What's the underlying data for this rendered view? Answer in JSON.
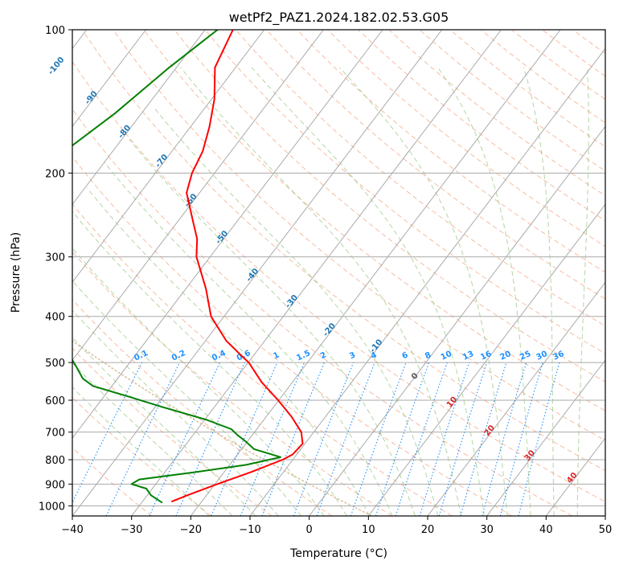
{
  "chart_data": {
    "type": "line",
    "subtype": "skew-T log-P diagram",
    "title": "wetPf2_PAZ1.2024.182.02.53.G05",
    "xlabel": "Temperature (°C)",
    "ylabel": "Pressure (hPa)",
    "xlim": [
      -40,
      50
    ],
    "ylim": [
      1050,
      100
    ],
    "y_scale": "log",
    "x_ticks": [
      -40,
      -30,
      -20,
      -10,
      0,
      10,
      20,
      30,
      40,
      50
    ],
    "y_ticks": [
      100,
      200,
      300,
      400,
      500,
      600,
      700,
      800,
      900,
      1000
    ],
    "grid": true,
    "legend": "none",
    "series": [
      {
        "key": "temperature",
        "color": "#ff0000",
        "points": [
          [
            100,
            -75.3
          ],
          [
            120,
            -73.5
          ],
          [
            140,
            -69.5
          ],
          [
            160,
            -66.8
          ],
          [
            180,
            -64.8
          ],
          [
            200,
            -63.8
          ],
          [
            220,
            -62.2
          ],
          [
            250,
            -57.8
          ],
          [
            275,
            -54.5
          ],
          [
            300,
            -52.3
          ],
          [
            350,
            -46.6
          ],
          [
            400,
            -42.2
          ],
          [
            450,
            -36.5
          ],
          [
            480,
            -32.5
          ],
          [
            500,
            -29.9
          ],
          [
            550,
            -25.2
          ],
          [
            600,
            -20.1
          ],
          [
            650,
            -15.7
          ],
          [
            700,
            -12.1
          ],
          [
            740,
            -10.4
          ],
          [
            780,
            -10.7
          ],
          [
            800,
            -11.7
          ],
          [
            850,
            -15.5
          ],
          [
            900,
            -19.6
          ],
          [
            950,
            -23.2
          ],
          [
            980,
            -25.1
          ]
        ]
      },
      {
        "key": "dewpoint",
        "color": "#008000",
        "points": [
          [
            100,
            -77.9
          ],
          [
            120,
            -81.2
          ],
          [
            150,
            -84.5
          ],
          [
            180,
            -88.1
          ],
          [
            200,
            -90.6
          ],
          [
            230,
            -91.3
          ],
          [
            265,
            -87.5
          ],
          [
            275,
            -86.1
          ],
          [
            290,
            -83.1
          ],
          [
            310,
            -80.4
          ],
          [
            340,
            -78.0
          ],
          [
            380,
            -76.8
          ],
          [
            400,
            -76.0
          ],
          [
            430,
            -71.5
          ],
          [
            460,
            -64.0
          ],
          [
            480,
            -61.4
          ],
          [
            510,
            -58.5
          ],
          [
            540,
            -55.9
          ],
          [
            560,
            -53.2
          ],
          [
            590,
            -45.7
          ],
          [
            620,
            -38.8
          ],
          [
            660,
            -29.6
          ],
          [
            690,
            -24.3
          ],
          [
            710,
            -22.5
          ],
          [
            730,
            -20.5
          ],
          [
            760,
            -17.9
          ],
          [
            790,
            -12.4
          ],
          [
            820,
            -17.2
          ],
          [
            850,
            -25.0
          ],
          [
            880,
            -33.4
          ],
          [
            900,
            -34.1
          ],
          [
            920,
            -31.0
          ],
          [
            950,
            -29.4
          ],
          [
            985,
            -26.5
          ]
        ]
      }
    ],
    "isotherm_color": "#aaaaaa",
    "dry_adiabat_color": "#f4a582",
    "moist_adiabat_color": "#93c47d",
    "mixing_ratio_color": "#1e90ff",
    "legacy_adiabat_color": "#d2b48c",
    "isotherm_labels": {
      "color": "#1f77b4",
      "values": [
        "-100",
        "-90",
        "-80",
        "-70",
        "-60",
        "-50",
        "-40",
        "-30",
        "-20",
        "-10"
      ]
    },
    "mixing_ratio_labels": {
      "color": "#1e90ff",
      "values": [
        "0.1",
        "0.2",
        "0.4",
        "0.6",
        "1",
        "1.5",
        "2",
        "3",
        "4",
        "6",
        "8",
        "10",
        "13",
        "16",
        "20",
        "25",
        "30",
        "36"
      ]
    },
    "warm_isotherm_labels": {
      "color": "#d62728",
      "values": [
        "10",
        "20",
        "30",
        "40"
      ]
    },
    "zero_isotherm_label": {
      "color": "#555555",
      "value": "0"
    }
  }
}
